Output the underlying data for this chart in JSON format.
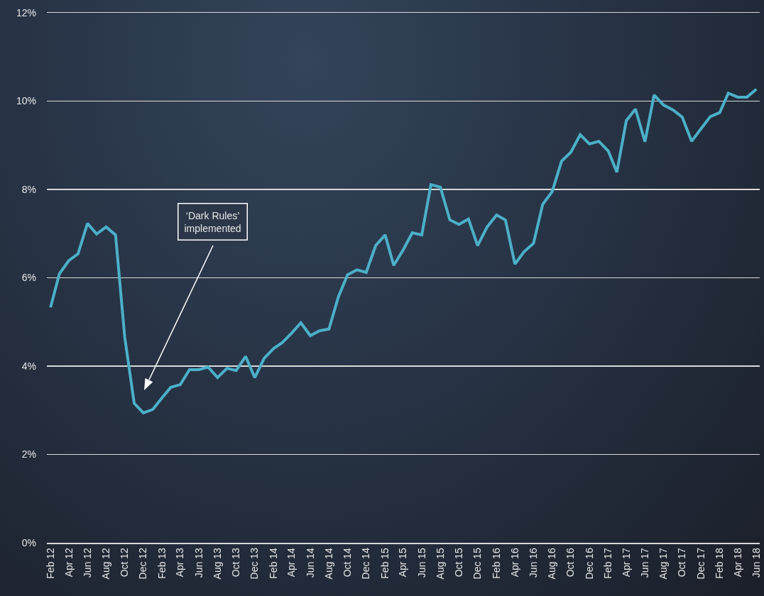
{
  "chart_data": {
    "type": "line",
    "x": [
      "2012-02",
      "2012-03",
      "2012-04",
      "2012-05",
      "2012-06",
      "2012-07",
      "2012-08",
      "2012-09",
      "2012-10",
      "2012-11",
      "2012-12",
      "2013-01",
      "2013-02",
      "2013-03",
      "2013-04",
      "2013-05",
      "2013-06",
      "2013-07",
      "2013-08",
      "2013-09",
      "2013-10",
      "2013-11",
      "2013-12",
      "2014-01",
      "2014-02",
      "2014-03",
      "2014-04",
      "2014-05",
      "2014-06",
      "2014-07",
      "2014-08",
      "2014-09",
      "2014-10",
      "2014-11",
      "2014-12",
      "2015-01",
      "2015-02",
      "2015-03",
      "2015-04",
      "2015-05",
      "2015-06",
      "2015-07",
      "2015-08",
      "2015-09",
      "2015-10",
      "2015-11",
      "2015-12",
      "2016-01",
      "2016-02",
      "2016-03",
      "2016-04",
      "2016-05",
      "2016-06",
      "2016-07",
      "2016-08",
      "2016-09",
      "2016-10",
      "2016-11",
      "2016-12",
      "2017-01",
      "2017-02",
      "2017-03",
      "2017-04",
      "2017-05",
      "2017-06",
      "2017-07",
      "2017-08",
      "2017-09",
      "2017-10",
      "2017-11",
      "2017-12",
      "2018-01",
      "2018-02",
      "2018-03",
      "2018-04",
      "2018-05",
      "2018-06"
    ],
    "series": [
      {
        "color": "#4bb0c8",
        "values": [
          5.33,
          6.09,
          6.39,
          6.54,
          7.23,
          6.99,
          7.15,
          6.97,
          4.66,
          3.16,
          2.94,
          3.02,
          3.29,
          3.52,
          3.58,
          3.92,
          3.92,
          3.98,
          3.74,
          3.95,
          3.9,
          4.22,
          3.74,
          4.18,
          4.4,
          4.53,
          4.75,
          4.98,
          4.69,
          4.8,
          4.84,
          5.57,
          6.07,
          6.18,
          6.12,
          6.73,
          6.97,
          6.28,
          6.63,
          7.02,
          6.97,
          8.11,
          8.05,
          7.31,
          7.21,
          7.33,
          6.73,
          7.15,
          7.42,
          7.31,
          6.31,
          6.59,
          6.78,
          7.66,
          7.95,
          8.64,
          8.84,
          9.24,
          9.03,
          9.09,
          8.87,
          8.39,
          9.56,
          9.82,
          9.08,
          10.14,
          9.91,
          9.8,
          9.64,
          9.09,
          9.37,
          9.65,
          9.74,
          10.18,
          10.09,
          10.09,
          10.27
        ]
      }
    ],
    "xlim": [
      "2012-01-20",
      "2018-06-12"
    ],
    "xticks": [
      {
        "value": "2012-02",
        "label": "Feb 12"
      },
      {
        "value": "2012-04",
        "label": "Apr 12"
      },
      {
        "value": "2012-06",
        "label": "Jun 12"
      },
      {
        "value": "2012-08",
        "label": "Aug 12"
      },
      {
        "value": "2012-10",
        "label": "Oct 12"
      },
      {
        "value": "2012-12",
        "label": "Dec 12"
      },
      {
        "value": "2013-02",
        "label": "Feb 13"
      },
      {
        "value": "2013-04",
        "label": "Apr 13"
      },
      {
        "value": "2013-06",
        "label": "Jun 13"
      },
      {
        "value": "2013-08",
        "label": "Aug 13"
      },
      {
        "value": "2013-10",
        "label": "Oct 13"
      },
      {
        "value": "2013-12",
        "label": "Dec 13"
      },
      {
        "value": "2014-02",
        "label": "Feb 14"
      },
      {
        "value": "2014-04",
        "label": "Apr 14"
      },
      {
        "value": "2014-06",
        "label": "Jun 14"
      },
      {
        "value": "2014-08",
        "label": "Aug 14"
      },
      {
        "value": "2014-10",
        "label": "Oct 14"
      },
      {
        "value": "2014-12",
        "label": "Dec 14"
      },
      {
        "value": "2015-02",
        "label": "Feb 15"
      },
      {
        "value": "2015-04",
        "label": "Apr 15"
      },
      {
        "value": "2015-06",
        "label": "Jun 15"
      },
      {
        "value": "2015-08",
        "label": "Aug 15"
      },
      {
        "value": "2015-10",
        "label": "Oct 15"
      },
      {
        "value": "2015-12",
        "label": "Dec 15"
      },
      {
        "value": "2016-02",
        "label": "Feb 16"
      },
      {
        "value": "2016-04",
        "label": "Apr 16"
      },
      {
        "value": "2016-06",
        "label": "Jun 16"
      },
      {
        "value": "2016-08",
        "label": "Aug 16"
      },
      {
        "value": "2016-10",
        "label": "Oct 16"
      },
      {
        "value": "2016-12",
        "label": "Dec 16"
      },
      {
        "value": "2017-02",
        "label": "Feb 17"
      },
      {
        "value": "2017-04",
        "label": "Apr 17"
      },
      {
        "value": "2017-06",
        "label": "Jun 17"
      },
      {
        "value": "2017-08",
        "label": "Aug 17"
      },
      {
        "value": "2017-10",
        "label": "Oct 17"
      },
      {
        "value": "2017-12",
        "label": "Dec 17"
      },
      {
        "value": "2018-02",
        "label": "Feb 18"
      },
      {
        "value": "2018-04",
        "label": "Apr 18"
      },
      {
        "value": "2018-06",
        "label": "Jun 18"
      }
    ],
    "ylim": [
      0,
      12
    ],
    "yticks": [
      {
        "value": 0,
        "label": "0%"
      },
      {
        "value": 2,
        "label": "2%"
      },
      {
        "value": 4,
        "label": "4%"
      },
      {
        "value": 6,
        "label": "6%"
      },
      {
        "value": 8,
        "label": "8%"
      },
      {
        "value": 10,
        "label": "10%"
      },
      {
        "value": 12,
        "label": "12%"
      }
    ],
    "grid": "y",
    "marker": "none",
    "line_style": "solid",
    "annotations": [
      "‘Dark Rules’\nimplemented"
    ]
  }
}
